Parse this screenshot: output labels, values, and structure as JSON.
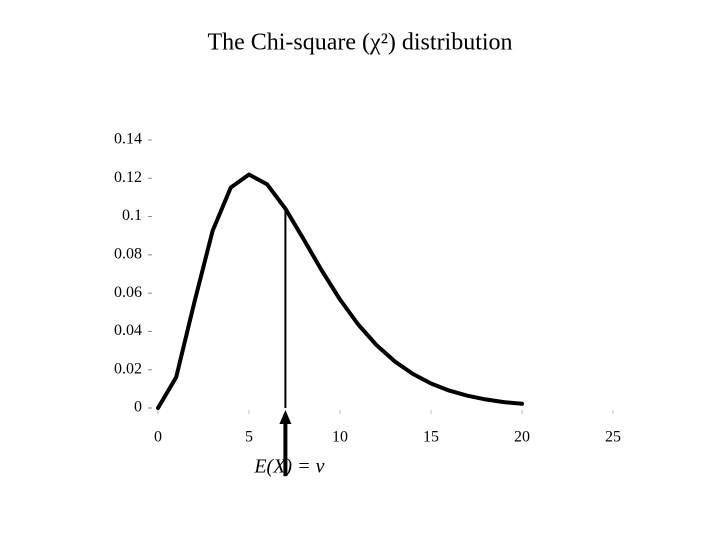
{
  "chart_data": {
    "type": "line",
    "title": "The Chi-square (χ²) distribution",
    "x": [
      0,
      1,
      2,
      3,
      4,
      5,
      6,
      7,
      8,
      9,
      10,
      11,
      12,
      13,
      14,
      15,
      16,
      17,
      18,
      19,
      20
    ],
    "series": [
      {
        "name": "χ²",
        "color": "#000000",
        "values": [
          0,
          0.0161,
          0.0553,
          0.0925,
          0.1152,
          0.122,
          0.1168,
          0.1041,
          0.0882,
          0.0718,
          0.0567,
          0.0436,
          0.0329,
          0.0244,
          0.0178,
          0.0128,
          0.0091,
          0.0064,
          0.0045,
          0.0031,
          0.0022
        ]
      }
    ],
    "xlim": [
      0,
      25
    ],
    "xticks": [
      0,
      5,
      10,
      15,
      20,
      25
    ],
    "ylim": [
      0,
      0.14
    ],
    "yticks": [
      0,
      0.02,
      0.04,
      0.06,
      0.08,
      0.1,
      0.12,
      0.14
    ],
    "annotation": {
      "text": "E(X) = ν",
      "x": 7
    }
  }
}
